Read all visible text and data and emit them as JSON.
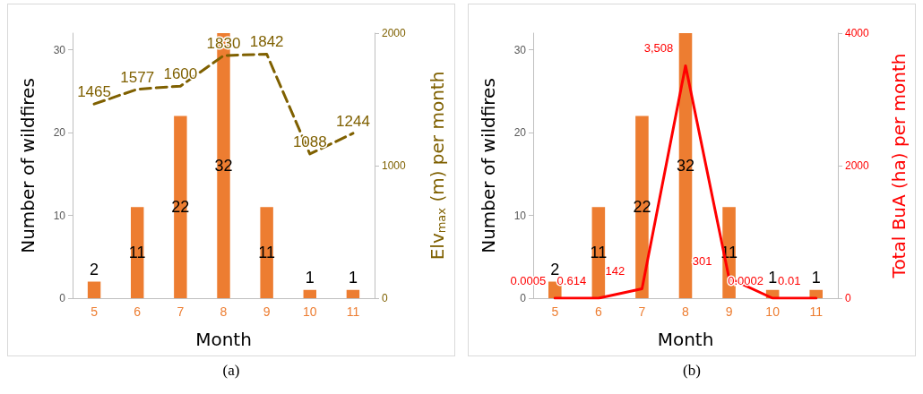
{
  "chart_data": [
    {
      "type": "bar",
      "xlabel": "Month",
      "ylabel": "Number of wildfires",
      "y2label": "Elv$_{max}$ (m) per month",
      "annotations": [
        "(a)"
      ],
      "categories": [
        "5",
        "6",
        "7",
        "8",
        "9",
        "10",
        "11"
      ],
      "ylim": [
        0,
        32
      ],
      "yticks": [
        0,
        10,
        20,
        30
      ],
      "y2lim": [
        0,
        2000
      ],
      "y2ticks": [
        0,
        1000,
        2000
      ],
      "grid": false,
      "legend": false,
      "data_labels": true,
      "series": [
        {
          "type": "bar",
          "color": "#ed7d31",
          "values": [
            2,
            11,
            22,
            32,
            11,
            1,
            1
          ]
        },
        {
          "type": "line",
          "axis": "y2",
          "color": "#7f6000",
          "line_style": "dashed",
          "marker": "none",
          "values": [
            1465,
            1577,
            1600,
            1830,
            1842,
            1088,
            1244
          ]
        }
      ]
    },
    {
      "type": "bar",
      "xlabel": "Month",
      "ylabel": "Number of wildfires",
      "y2label": "Total BuA (ha) per month",
      "annotations": [
        "(b)"
      ],
      "categories": [
        "5",
        "6",
        "7",
        "8",
        "9",
        "10",
        "11"
      ],
      "ylim": [
        0,
        32
      ],
      "yticks": [
        0,
        10,
        20,
        30
      ],
      "y2lim": [
        0,
        4000
      ],
      "y2ticks": [
        0,
        2000,
        4000
      ],
      "grid": false,
      "legend": false,
      "data_labels": true,
      "series": [
        {
          "type": "bar",
          "color": "#ed7d31",
          "values": [
            2,
            11,
            22,
            32,
            11,
            1,
            1
          ]
        },
        {
          "type": "line",
          "axis": "y2",
          "color": "#ff0000",
          "line_style": "solid",
          "marker": "none",
          "values": [
            0.0005,
            0.614,
            142,
            3508,
            301,
            0.0002,
            0.01
          ],
          "value_labels": [
            "0.0005",
            "0.614",
            "142",
            "3,508",
            "301",
            "0.0002",
            "0.01"
          ]
        }
      ]
    }
  ]
}
